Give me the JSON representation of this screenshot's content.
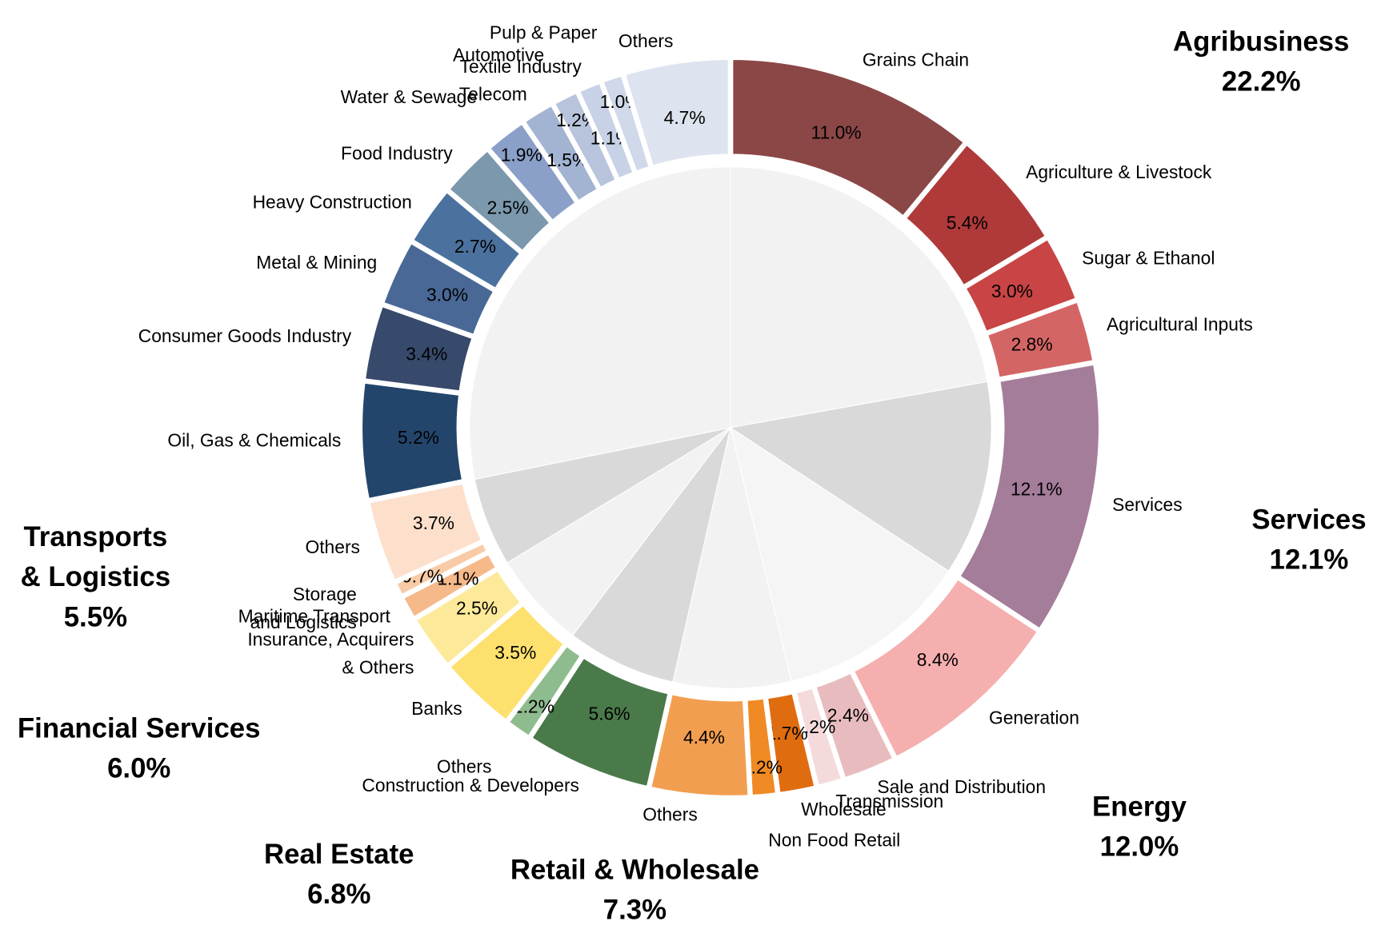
{
  "chart_data": {
    "type": "sunburst",
    "groups": [
      {
        "name": "Agribusiness",
        "value": 22.2,
        "value_label": "22.2%",
        "color": "#b03a3a",
        "inner_color": "#f2f2f2",
        "segments": [
          {
            "name": "Grains Chain",
            "value": 11.0,
            "value_label": "11.0%",
            "color": "#8b4646"
          },
          {
            "name": "Agriculture & Livestock",
            "value": 5.4,
            "value_label": "5.4%",
            "color": "#b03a3a"
          },
          {
            "name": "Sugar & Ethanol",
            "value": 3.0,
            "value_label": "3.0%",
            "color": "#c94444"
          },
          {
            "name": "Agricultural Inputs",
            "value": 2.8,
            "value_label": "2.8%",
            "color": "#d46565"
          }
        ]
      },
      {
        "name": "Services",
        "value": 12.1,
        "value_label": "12.1%",
        "color": "#a47d9a",
        "inner_color": "#d9d9d9",
        "segments": [
          {
            "name": "Services",
            "value": 12.1,
            "value_label": "12.1%",
            "color": "#a47d9a"
          }
        ]
      },
      {
        "name": "Energy",
        "value": 12.0,
        "value_label": "12.0%",
        "color": "#f29a9a",
        "inner_color": "#f5f5f5",
        "segments": [
          {
            "name": "Generation",
            "value": 8.4,
            "value_label": "8.4%",
            "color": "#f5afae"
          },
          {
            "name": "Sale and Distribution",
            "value": 2.4,
            "value_label": "2.4%",
            "color": "#e8bcbf"
          },
          {
            "name": "Transmission",
            "value": 1.2,
            "value_label": "1.2%",
            "color": "#f5dadc"
          }
        ]
      },
      {
        "name": "Retail & Wholesale",
        "value": 7.3,
        "value_label": "7.3%",
        "color": "#e07020",
        "inner_color": "#f2f2f2",
        "segments": [
          {
            "name": "Wholesale",
            "value": 1.7,
            "value_label": "1.7%",
            "color": "#e06c10"
          },
          {
            "name": "Non Food Retail",
            "value": 1.2,
            "value_label": "1.2%",
            "color": "#f08a24"
          },
          {
            "name": "Others",
            "value": 4.4,
            "value_label": "4.4%",
            "color": "#f29e50"
          }
        ]
      },
      {
        "name": "Real Estate",
        "value": 6.8,
        "value_label": "6.8%",
        "color": "#8fbc8f",
        "inner_color": "#d9d9d9",
        "segments": [
          {
            "name": "Construction & Developers",
            "value": 5.6,
            "value_label": "5.6%",
            "color": "#4a7a4a"
          },
          {
            "name": "Others",
            "value": 1.2,
            "value_label": "1.2%",
            "color": "#8fbc8f"
          }
        ]
      },
      {
        "name": "Financial Services",
        "value": 6.0,
        "value_label": "6.0%",
        "color": "#f5d033",
        "inner_color": "#f2f2f2",
        "segments": [
          {
            "name": "Banks",
            "value": 3.5,
            "value_label": "3.5%",
            "color": "#fde06e"
          },
          {
            "name": [
              "Insurance, Acquirers",
              "& Others"
            ],
            "value": 2.5,
            "value_label": "2.5%",
            "color": "#fde99a"
          }
        ]
      },
      {
        "name": [
          "Transports",
          "& Logistics"
        ],
        "value": 5.5,
        "value_label": "5.5%",
        "color": "#f5a86a",
        "inner_color": "#d9d9d9",
        "segments": [
          {
            "name": "Maritime Transport",
            "value": 1.1,
            "value_label": "1.1%",
            "color": "#f5b98a"
          },
          {
            "name": [
              "Storage",
              "and Logistics"
            ],
            "value": 0.7,
            "value_label": "0.7%",
            "color": "#f8cba6"
          },
          {
            "name": "Others",
            "value": 3.7,
            "value_label": "3.7%",
            "color": "#fde0cc"
          }
        ]
      },
      {
        "inner_color": "#f2f2f2",
        "segments": [
          {
            "name": "Oil, Gas & Chemicals",
            "value": 5.2,
            "value_label": "5.2%",
            "color": "#23456b"
          },
          {
            "name": "Consumer Goods Industry",
            "value": 3.4,
            "value_label": "3.4%",
            "color": "#374a6b"
          },
          {
            "name": "Metal & Mining",
            "value": 3.0,
            "value_label": "3.0%",
            "color": "#496896"
          },
          {
            "name": "Heavy Construction",
            "value": 2.7,
            "value_label": "2.7%",
            "color": "#4b719e"
          },
          {
            "name": "Food Industry",
            "value": 2.5,
            "value_label": "2.5%",
            "color": "#7b98ad"
          },
          {
            "name": "Water & Sewage",
            "value": 1.9,
            "value_label": "1.9%",
            "color": "#8aa0c8"
          },
          {
            "name": "Telecom",
            "value": 1.5,
            "value_label": "1.5%",
            "color": "#a3b3d2"
          },
          {
            "name": "Automotive",
            "value": 1.2,
            "value_label": "1.2%",
            "color": "#b7c4dc"
          },
          {
            "name": "Textile Industry",
            "value": 1.1,
            "value_label": "1.1%",
            "color": "#c7d2e6"
          },
          {
            "name": "Pulp & Paper",
            "value": 1.0,
            "value_label": "1.0%",
            "color": "#d0d9ea"
          },
          {
            "name": "Others",
            "value": 4.7,
            "value_label": "4.7%",
            "color": "#dee4ef"
          }
        ]
      }
    ]
  }
}
